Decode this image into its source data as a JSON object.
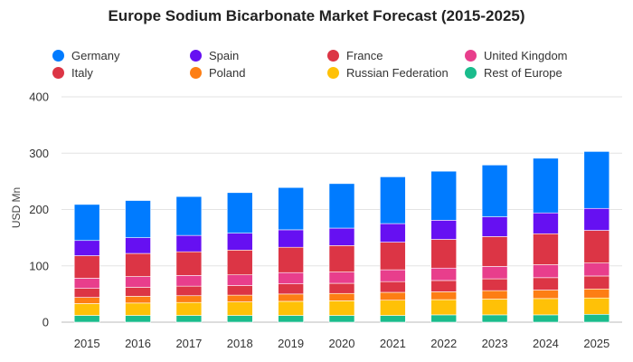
{
  "title": "Europe Sodium Bicarbonate Market Forecast (2015-2025)",
  "chart_data": {
    "type": "bar",
    "stacked": true,
    "title": "Europe Sodium Bicarbonate Market Forecast (2015-2025)",
    "xlabel": "",
    "ylabel": "USD Mn",
    "ylim": [
      0,
      400
    ],
    "yticks": [
      0,
      100,
      200,
      300,
      400
    ],
    "grid": true,
    "legend_position": "top",
    "categories": [
      "2015",
      "2016",
      "2017",
      "2018",
      "2019",
      "2020",
      "2021",
      "2022",
      "2023",
      "2024",
      "2025"
    ],
    "series": [
      {
        "name": "Rest of Europe",
        "color": "#1abc8c",
        "values": [
          12,
          12,
          12,
          12,
          12,
          12,
          12,
          13,
          13,
          13,
          14
        ]
      },
      {
        "name": "Russian Federation",
        "color": "#ffc107",
        "values": [
          21,
          22,
          23,
          24,
          25,
          26,
          27,
          27,
          28,
          29,
          29
        ]
      },
      {
        "name": "Poland",
        "color": "#fd7e14",
        "values": [
          11,
          12,
          12,
          12,
          13,
          13,
          14,
          14,
          15,
          15,
          16
        ]
      },
      {
        "name": "Italy",
        "color": "#dc3545",
        "values": [
          16,
          16,
          17,
          17,
          18,
          18,
          19,
          20,
          21,
          22,
          23
        ]
      },
      {
        "name": "United Kingdom",
        "color": "#e83e8c",
        "values": [
          18,
          19,
          19,
          19,
          20,
          20,
          21,
          22,
          22,
          23,
          23
        ]
      },
      {
        "name": "France",
        "color": "#dc3545",
        "values": [
          40,
          41,
          42,
          44,
          45,
          47,
          49,
          51,
          53,
          55,
          58
        ]
      },
      {
        "name": "Spain",
        "color": "#6610f2",
        "values": [
          27,
          28,
          29,
          30,
          31,
          31,
          33,
          34,
          35,
          37,
          39
        ]
      },
      {
        "name": "Germany",
        "color": "#007bff",
        "values": [
          64,
          66,
          69,
          72,
          75,
          79,
          83,
          87,
          92,
          97,
          101
        ]
      }
    ]
  },
  "legend": [
    {
      "label": "Germany",
      "color": "#007bff"
    },
    {
      "label": "Spain",
      "color": "#6610f2"
    },
    {
      "label": "France",
      "color": "#dc3545"
    },
    {
      "label": "United Kingdom",
      "color": "#e83e8c"
    },
    {
      "label": "Italy",
      "color": "#dc3545"
    },
    {
      "label": "Poland",
      "color": "#fd7e14"
    },
    {
      "label": "Russian Federation",
      "color": "#ffc107"
    },
    {
      "label": "Rest of Europe",
      "color": "#1abc8c"
    }
  ]
}
